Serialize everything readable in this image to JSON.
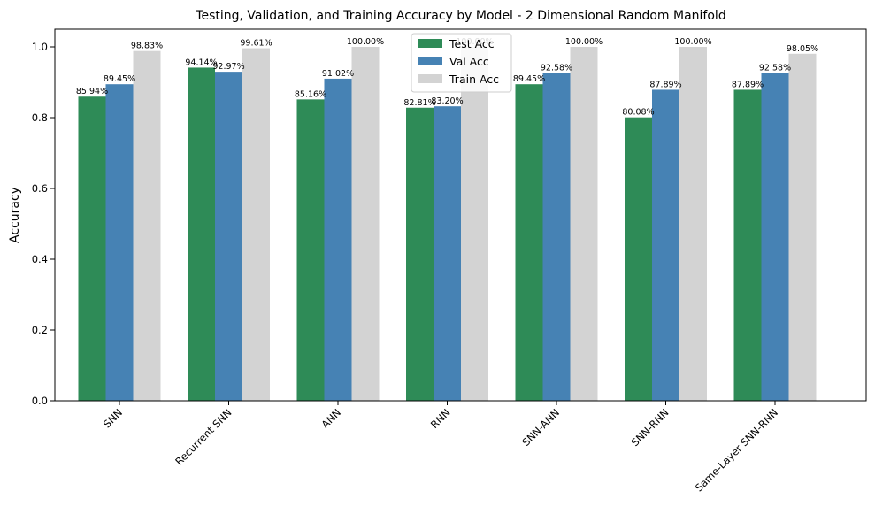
{
  "chart_data": {
    "type": "bar",
    "title": "Testing, Validation, and Training Accuracy by Model - 2 Dimensional Random Manifold",
    "xlabel": "",
    "ylabel": "Accuracy",
    "ylim": [
      0,
      1.05
    ],
    "yticks": [
      "0.0",
      "0.2",
      "0.4",
      "0.6",
      "0.8",
      "1.0"
    ],
    "grid": false,
    "legend_position": "top-center",
    "categories": [
      "SNN",
      "Recurrent SNN",
      "ANN",
      "RNN",
      "SNN-ANN",
      "SNN-RNN",
      "Same-Layer SNN-RNN"
    ],
    "series": [
      {
        "name": "Test Acc",
        "color": "#2e8b57",
        "values": [
          0.8594,
          0.9414,
          0.8516,
          0.8281,
          0.8945,
          0.8008,
          0.8789
        ],
        "labels": [
          "85.94%",
          "94.14%",
          "85.16%",
          "82.81%",
          "89.45%",
          "80.08%",
          "87.89%"
        ]
      },
      {
        "name": "Val Acc",
        "color": "#4682b4",
        "values": [
          0.8945,
          0.9297,
          0.9102,
          0.832,
          0.9258,
          0.8789,
          0.9258
        ],
        "labels": [
          "89.45%",
          "92.97%",
          "91.02%",
          "83.20%",
          "92.58%",
          "87.89%",
          "92.58%"
        ]
      },
      {
        "name": "Train Acc",
        "color": "#d3d3d3",
        "values": [
          0.9883,
          0.9961,
          1.0,
          1.0,
          1.0,
          1.0,
          0.9805
        ],
        "labels": [
          "98.83%",
          "99.61%",
          "100.00%",
          "100.00%",
          "100.00%",
          "100.00%",
          "98.05%"
        ]
      }
    ]
  }
}
